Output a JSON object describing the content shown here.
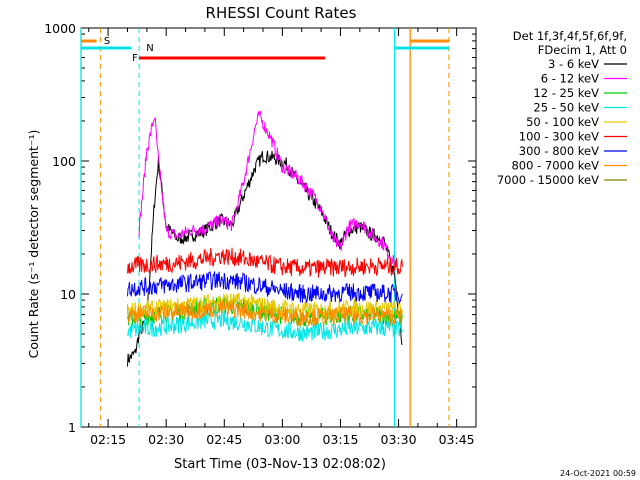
{
  "chart_data": {
    "type": "line",
    "title": "RHESSI Count Rates",
    "xlabel": "Start Time (03-Nov-13 02:08:02)",
    "ylabel": "Count Rate (s⁻¹ detector segment⁻¹)",
    "y_scale": "log",
    "ylim": [
      1,
      1000
    ],
    "xlim_minutes_after_0208": [
      0,
      102
    ],
    "x_tick_labels": [
      "02:15",
      "02:30",
      "02:45",
      "03:00",
      "03:15",
      "03:30",
      "03:45"
    ],
    "y_tick_labels": [
      "1",
      "10",
      "100",
      "1000"
    ],
    "legend": {
      "placement": "top-right",
      "header": [
        "Det 1f,3f,4f,5f,6f,9f,",
        "FDecim 1, Att 0"
      ]
    },
    "footer": "24-Oct-2021 00:59",
    "series": [
      {
        "name": "3 - 6 keV",
        "color": "#000000",
        "x": [
          "02:20",
          "02:22",
          "02:23",
          "02:25",
          "02:27",
          "02:28",
          "02:30",
          "02:33",
          "02:36",
          "02:40",
          "02:44",
          "02:47",
          "02:50",
          "02:53",
          "02:55",
          "02:58",
          "03:01",
          "03:04",
          "03:07",
          "03:10",
          "03:13",
          "03:15",
          "03:17",
          "03:20",
          "03:23",
          "03:26",
          "03:29",
          "03:31"
        ],
        "y": [
          3.2,
          3.6,
          5.0,
          6.5,
          50,
          100,
          32,
          26,
          27,
          30,
          36,
          33,
          55,
          90,
          110,
          105,
          95,
          70,
          55,
          42,
          28,
          24,
          30,
          32,
          28,
          26,
          14,
          4.2
        ]
      },
      {
        "name": "6 - 12 keV",
        "color": "#ff00ff",
        "x": [
          "02:23",
          "02:25",
          "02:27",
          "02:28",
          "02:30",
          "02:33",
          "02:36",
          "02:40",
          "02:44",
          "02:47",
          "02:50",
          "02:53",
          "02:54",
          "02:57",
          "03:00",
          "03:04",
          "03:07",
          "03:10",
          "03:13",
          "03:15",
          "03:17",
          "03:20",
          "03:23",
          "03:26",
          "03:29"
        ],
        "y": [
          30,
          120,
          220,
          100,
          30,
          27,
          30,
          31,
          36,
          33,
          70,
          180,
          220,
          150,
          90,
          75,
          60,
          45,
          26,
          22,
          32,
          35,
          28,
          24,
          17
        ]
      },
      {
        "name": "12 - 25 keV",
        "color": "#00cc00",
        "x": [
          "02:20",
          "02:24",
          "02:27",
          "02:32",
          "02:38",
          "02:44",
          "02:50",
          "02:55",
          "03:00",
          "03:06",
          "03:12",
          "03:18",
          "03:24",
          "03:31"
        ],
        "y": [
          6.5,
          6.8,
          7.0,
          7.2,
          7.8,
          8.3,
          8.0,
          7.4,
          6.9,
          6.6,
          6.8,
          7.0,
          7.0,
          6.6
        ]
      },
      {
        "name": "25 - 50 keV",
        "color": "#00e5e5",
        "x": [
          "02:20",
          "02:24",
          "02:27",
          "02:32",
          "02:38",
          "02:44",
          "02:50",
          "02:55",
          "03:00",
          "03:06",
          "03:12",
          "03:18",
          "03:24",
          "03:31"
        ],
        "y": [
          5.3,
          5.5,
          5.6,
          5.8,
          6.2,
          6.4,
          6.1,
          5.6,
          5.3,
          5.1,
          5.3,
          5.5,
          5.6,
          5.4
        ]
      },
      {
        "name": "50 - 100 keV",
        "color": "#e5c800",
        "x": [
          "02:20",
          "02:24",
          "02:27",
          "02:32",
          "02:38",
          "02:44",
          "02:50",
          "02:55",
          "03:00",
          "03:06",
          "03:12",
          "03:18",
          "03:24",
          "03:31"
        ],
        "y": [
          7.4,
          7.6,
          7.7,
          8.0,
          8.4,
          8.9,
          8.7,
          8.2,
          7.8,
          7.5,
          7.6,
          7.8,
          7.8,
          7.6
        ]
      },
      {
        "name": "100 - 300 keV",
        "color": "#ff0000",
        "x": [
          "02:20",
          "02:24",
          "02:27",
          "02:32",
          "02:38",
          "02:44",
          "02:50",
          "02:55",
          "03:00",
          "03:06",
          "03:12",
          "03:18",
          "03:24",
          "03:31"
        ],
        "y": [
          16,
          16.5,
          16.8,
          17,
          18,
          19.5,
          18.5,
          17,
          16,
          15.5,
          15.7,
          16,
          16.3,
          16
        ]
      },
      {
        "name": "300 - 800 keV",
        "color": "#0000ff",
        "x": [
          "02:20",
          "02:24",
          "02:27",
          "02:32",
          "02:38",
          "02:44",
          "02:50",
          "02:55",
          "03:00",
          "03:06",
          "03:12",
          "03:18",
          "03:24",
          "03:31"
        ],
        "y": [
          11,
          11.3,
          11.5,
          11.8,
          12.3,
          12.8,
          12.2,
          11.4,
          10.5,
          10,
          10.1,
          10.3,
          10.2,
          10
        ]
      },
      {
        "name": "800 - 7000 keV",
        "color": "#ff8c00",
        "x": [
          "02:20",
          "02:24",
          "02:27",
          "02:32",
          "02:38",
          "02:44",
          "02:50",
          "02:55",
          "03:00",
          "03:06",
          "03:12",
          "03:18",
          "03:24",
          "03:31"
        ],
        "y": [
          7.0,
          7.1,
          7.2,
          7.4,
          7.6,
          7.9,
          7.6,
          7.1,
          6.9,
          6.7,
          6.8,
          6.9,
          6.9,
          6.7
        ]
      },
      {
        "name": "7000 - 15000 keV",
        "color": "#808000",
        "x": [],
        "y": []
      }
    ],
    "flags": [
      {
        "label": "S",
        "color": "#ff8c00",
        "bar_ranges": [
          [
            "02:08",
            "02:12"
          ],
          [
            "03:33",
            "03:43"
          ]
        ],
        "boundaries": [
          "02:13",
          "03:33",
          "03:43"
        ]
      },
      {
        "label": "N",
        "color": "#00e5e5",
        "bar_ranges": [
          [
            "02:08",
            "02:21"
          ],
          [
            "03:29",
            "03:43"
          ]
        ],
        "boundaries": [
          "02:08",
          "02:23",
          "03:29"
        ]
      },
      {
        "label": "F",
        "color": "#ff0000",
        "bar_ranges": [
          [
            "02:23",
            "03:11"
          ]
        ],
        "boundaries": []
      }
    ]
  }
}
